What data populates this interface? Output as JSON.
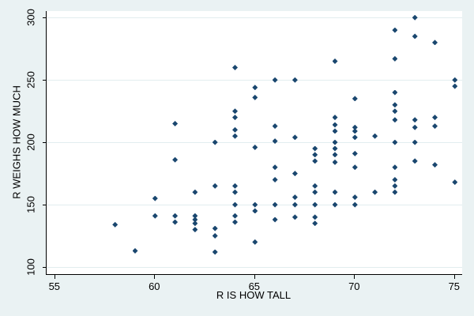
{
  "chart_data": {
    "type": "scatter",
    "title": "",
    "xlabel": "R IS HOW TALL",
    "ylabel": "R WEIGHS HOW MUCH",
    "x_ticks": [
      55,
      60,
      65,
      70,
      75
    ],
    "y_ticks": [
      100,
      150,
      200,
      250,
      300
    ],
    "xlim": [
      54.6,
      75.4
    ],
    "ylim": [
      94,
      305
    ],
    "grid": "horizontal-only",
    "legend": "none",
    "marker": "diamond",
    "marker_color": "#1a476f",
    "background_color": "#eaf2f3",
    "plot_background_color": "#ffffff",
    "gridline_color": "#e2edef",
    "points": [
      [
        58,
        134
      ],
      [
        59,
        113
      ],
      [
        60,
        155
      ],
      [
        60,
        141
      ],
      [
        61,
        215
      ],
      [
        61,
        186
      ],
      [
        61,
        141
      ],
      [
        61,
        136
      ],
      [
        62,
        160
      ],
      [
        62,
        141
      ],
      [
        62,
        138
      ],
      [
        62,
        135
      ],
      [
        62,
        130
      ],
      [
        63,
        200
      ],
      [
        63,
        165
      ],
      [
        63,
        131
      ],
      [
        63,
        125
      ],
      [
        63,
        112
      ],
      [
        64,
        260
      ],
      [
        64,
        225
      ],
      [
        64,
        220
      ],
      [
        64,
        210
      ],
      [
        64,
        205
      ],
      [
        64,
        165
      ],
      [
        64,
        160
      ],
      [
        64,
        150
      ],
      [
        64,
        141
      ],
      [
        64,
        136
      ],
      [
        65,
        244
      ],
      [
        65,
        236
      ],
      [
        65,
        196
      ],
      [
        65,
        150
      ],
      [
        65,
        145
      ],
      [
        65,
        120
      ],
      [
        66,
        250
      ],
      [
        66,
        213
      ],
      [
        66,
        201
      ],
      [
        66,
        180
      ],
      [
        66,
        170
      ],
      [
        66,
        150
      ],
      [
        66,
        138
      ],
      [
        67,
        250
      ],
      [
        67,
        204
      ],
      [
        67,
        175
      ],
      [
        67,
        156
      ],
      [
        67,
        150
      ],
      [
        67,
        140
      ],
      [
        68,
        195
      ],
      [
        68,
        190
      ],
      [
        68,
        185
      ],
      [
        68,
        165
      ],
      [
        68,
        160
      ],
      [
        68,
        150
      ],
      [
        68,
        140
      ],
      [
        68,
        135
      ],
      [
        69,
        265
      ],
      [
        69,
        220
      ],
      [
        69,
        214
      ],
      [
        69,
        209
      ],
      [
        69,
        200
      ],
      [
        69,
        195
      ],
      [
        69,
        190
      ],
      [
        69,
        184
      ],
      [
        69,
        160
      ],
      [
        69,
        150
      ],
      [
        70,
        235
      ],
      [
        70,
        212
      ],
      [
        70,
        209
      ],
      [
        70,
        204
      ],
      [
        70,
        191
      ],
      [
        70,
        180
      ],
      [
        70,
        156
      ],
      [
        70,
        150
      ],
      [
        71,
        205
      ],
      [
        71,
        160
      ],
      [
        72,
        290
      ],
      [
        72,
        267
      ],
      [
        72,
        240
      ],
      [
        72,
        230
      ],
      [
        72,
        225
      ],
      [
        72,
        218
      ],
      [
        72,
        200
      ],
      [
        72,
        180
      ],
      [
        72,
        170
      ],
      [
        72,
        165
      ],
      [
        72,
        160
      ],
      [
        73,
        300
      ],
      [
        73,
        285
      ],
      [
        73,
        218
      ],
      [
        73,
        212
      ],
      [
        73,
        200
      ],
      [
        73,
        185
      ],
      [
        74,
        280
      ],
      [
        74,
        220
      ],
      [
        74,
        213
      ],
      [
        74,
        182
      ],
      [
        75,
        250
      ],
      [
        75,
        245
      ],
      [
        75,
        168
      ]
    ]
  }
}
